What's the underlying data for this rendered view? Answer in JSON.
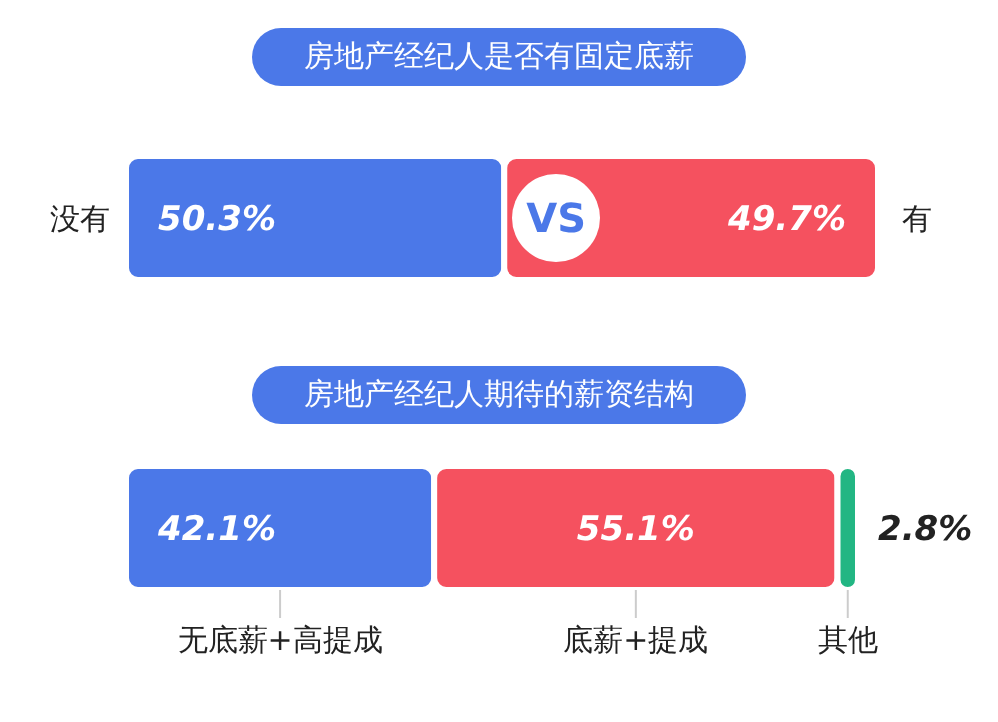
{
  "chart_data": [
    {
      "type": "bar",
      "orientation": "horizontal",
      "stacked": true,
      "title": "房地产经纪人是否有固定底薪",
      "categories": [
        null
      ],
      "annotations": [
        "VS"
      ],
      "series": [
        {
          "name": "没有",
          "color": "#4b78e8",
          "values": [
            50.3
          ],
          "value_labels": [
            "50.3%"
          ]
        },
        {
          "name": "有",
          "color": "#f5515f",
          "values": [
            49.7
          ],
          "value_labels": [
            "49.7%"
          ]
        }
      ]
    },
    {
      "type": "bar",
      "orientation": "horizontal",
      "stacked": true,
      "title": "房地产经纪人期待的薪资结构",
      "categories": [
        null
      ],
      "series": [
        {
          "name": "无底薪+高提成",
          "color": "#4b78e8",
          "values": [
            42.1
          ],
          "value_labels": [
            "42.1%"
          ]
        },
        {
          "name": "底薪+提成",
          "color": "#f5515f",
          "values": [
            55.1
          ],
          "value_labels": [
            "55.1%"
          ]
        },
        {
          "name": "其他",
          "color": "#22b683",
          "values": [
            2.8
          ],
          "value_labels": [
            "2.8%"
          ]
        }
      ]
    }
  ]
}
